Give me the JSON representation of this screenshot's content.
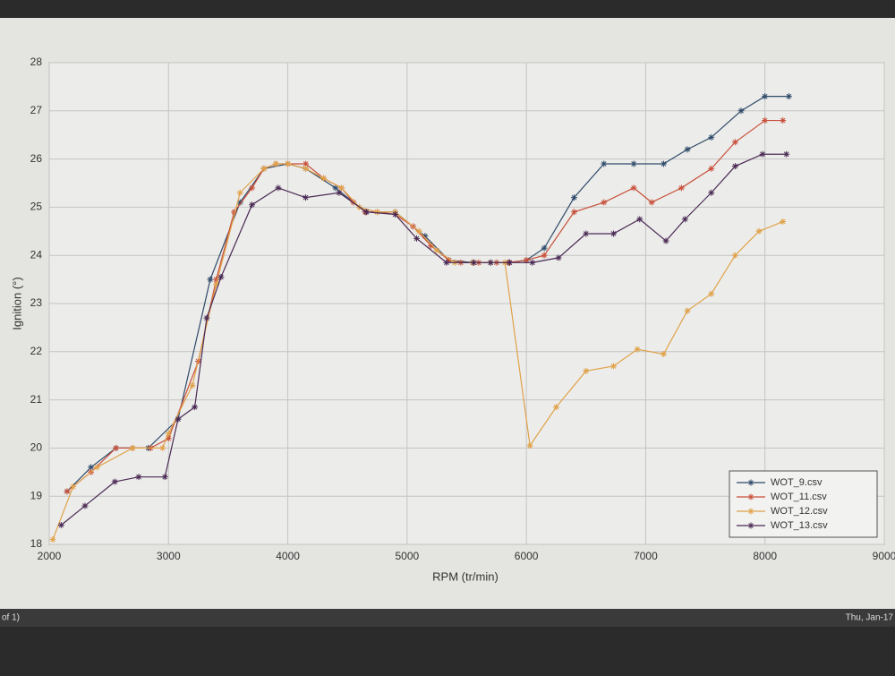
{
  "chart_data": {
    "type": "line",
    "xlabel": "RPM (tr/min)",
    "ylabel": "Ignition (°)",
    "xlim": [
      2000,
      9000
    ],
    "xticks": [
      2000,
      3000,
      4000,
      5000,
      6000,
      7000,
      8000,
      9000
    ],
    "ylim": [
      18,
      28
    ],
    "yticks": [
      18,
      19,
      20,
      21,
      22,
      23,
      24,
      25,
      26,
      27,
      28
    ],
    "grid": true,
    "legend": "lower right",
    "marker": "*",
    "series": [
      {
        "name": "WOT_9.csv",
        "color": "#2f4a6a",
        "x": [
          2150,
          2350,
          2560,
          2830,
          3080,
          3350,
          3600,
          3800,
          4000,
          4150,
          4400,
          4650,
          4900,
          5150,
          5350,
          5550,
          5700,
          5850,
          6000,
          6150,
          6400,
          6650,
          6900,
          7150,
          7350,
          7550,
          7800,
          8000,
          8200
        ],
        "values": [
          19.1,
          19.6,
          20.0,
          20.0,
          20.6,
          23.5,
          25.1,
          25.8,
          25.9,
          25.8,
          25.4,
          24.9,
          24.9,
          24.4,
          23.9,
          23.85,
          23.85,
          23.85,
          23.9,
          24.15,
          25.2,
          25.9,
          25.9,
          25.9,
          26.2,
          26.45,
          27.0,
          27.3,
          27.3
        ]
      },
      {
        "name": "WOT_11.csv",
        "color": "#c8503a",
        "x": [
          2150,
          2350,
          2560,
          2700,
          2850,
          3000,
          3250,
          3400,
          3550,
          3700,
          3800,
          3900,
          4000,
          4150,
          4300,
          4450,
          4550,
          4650,
          4750,
          4900,
          5050,
          5200,
          5350,
          5450,
          5600,
          5750,
          5850,
          6000,
          6150,
          6400,
          6650,
          6900,
          7050,
          7300,
          7550,
          7750,
          8000,
          8150
        ],
        "values": [
          19.1,
          19.5,
          20.0,
          20.0,
          20.0,
          20.2,
          21.8,
          23.5,
          24.9,
          25.4,
          25.8,
          25.9,
          25.9,
          25.9,
          25.6,
          25.4,
          25.1,
          24.9,
          24.9,
          24.85,
          24.6,
          24.2,
          23.9,
          23.85,
          23.85,
          23.85,
          23.85,
          23.9,
          24.0,
          24.9,
          25.1,
          25.4,
          25.1,
          25.4,
          25.8,
          26.35,
          26.8,
          26.8
        ]
      },
      {
        "name": "WOT_12.csv",
        "color": "#e0a24a",
        "x": [
          2030,
          2200,
          2400,
          2700,
          2950,
          3000,
          3200,
          3400,
          3600,
          3800,
          3900,
          4000,
          4150,
          4300,
          4450,
          4600,
          4750,
          4900,
          5100,
          5250,
          5400,
          5550,
          5700,
          5820,
          6030,
          6250,
          6500,
          6730,
          6930,
          7150,
          7350,
          7550,
          7750,
          7950,
          8150
        ],
        "values": [
          18.1,
          19.2,
          19.6,
          20.0,
          20.0,
          20.3,
          21.3,
          23.4,
          25.3,
          25.8,
          25.9,
          25.9,
          25.8,
          25.6,
          25.4,
          25.0,
          24.9,
          24.9,
          24.5,
          24.1,
          23.85,
          23.85,
          23.85,
          23.85,
          20.05,
          20.85,
          21.6,
          21.7,
          22.05,
          21.95,
          22.85,
          23.2,
          24.0,
          24.5,
          24.7
        ]
      },
      {
        "name": "WOT_13.csv",
        "color": "#4a2a55",
        "x": [
          2100,
          2300,
          2550,
          2750,
          2970,
          3080,
          3220,
          3320,
          3440,
          3700,
          3920,
          4150,
          4430,
          4660,
          4900,
          5080,
          5330,
          5560,
          5700,
          5860,
          6050,
          6270,
          6500,
          6730,
          6950,
          7170,
          7330,
          7550,
          7750,
          7980,
          8180
        ],
        "values": [
          18.4,
          18.8,
          19.3,
          19.4,
          19.4,
          20.6,
          20.85,
          22.7,
          23.55,
          25.05,
          25.4,
          25.2,
          25.3,
          24.9,
          24.85,
          24.35,
          23.85,
          23.85,
          23.85,
          23.85,
          23.85,
          23.95,
          24.45,
          24.45,
          24.75,
          24.3,
          24.75,
          25.3,
          25.85,
          26.1,
          26.1
        ]
      }
    ]
  },
  "status_bar": {
    "left": "of 1)",
    "right": "Thu, Jan-17"
  }
}
